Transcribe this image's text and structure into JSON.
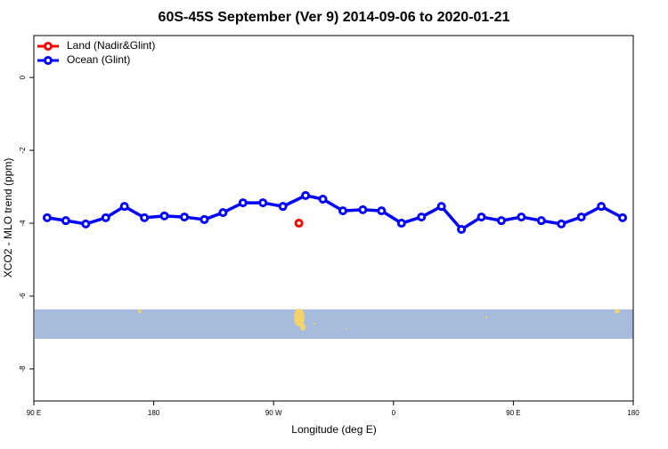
{
  "chart_data": {
    "type": "line",
    "title": "60S-45S September (Ver 9)   2014-09-06 to 2020-01-21",
    "x_label": "Longitude (deg E)",
    "y_label": "XCO2 - MLO trend (ppm)",
    "xlim": [
      90,
      540
    ],
    "ylim": [
      1.15,
      -8.88
    ],
    "xticks": [
      {
        "value": 90,
        "label": "90 E"
      },
      {
        "value": 180,
        "label": "180"
      },
      {
        "value": 270,
        "label": "90 W"
      },
      {
        "value": 360,
        "label": "0"
      },
      {
        "value": 450,
        "label": "90 E"
      },
      {
        "value": 540,
        "label": "180"
      }
    ],
    "yticks": [
      0,
      -2,
      -4,
      -6,
      -8
    ],
    "legend": "top-left",
    "series": [
      {
        "name": "Land (Nadir&Glint)",
        "color": "#ff0000",
        "x": [
          289
        ],
        "values": [
          -4.0
        ]
      },
      {
        "name": "Ocean (Glint)",
        "color": "#0000ff",
        "x": [
          100,
          114,
          129,
          144,
          158,
          173,
          188,
          203,
          218,
          232,
          247,
          262,
          277,
          294,
          307,
          322,
          337,
          351,
          366,
          381,
          396,
          411,
          426,
          441,
          456,
          471,
          486,
          501,
          516,
          532
        ],
        "values": [
          -3.85,
          -3.93,
          -4.02,
          -3.85,
          -3.54,
          -3.85,
          -3.8,
          -3.83,
          -3.9,
          -3.71,
          -3.44,
          -3.44,
          -3.54,
          -3.24,
          -3.34,
          -3.66,
          -3.63,
          -3.66,
          -4.0,
          -3.83,
          -3.54,
          -4.17,
          -3.83,
          -3.93,
          -3.83,
          -3.93,
          -4.02,
          -3.83,
          -3.54,
          -3.85
        ]
      }
    ]
  }
}
